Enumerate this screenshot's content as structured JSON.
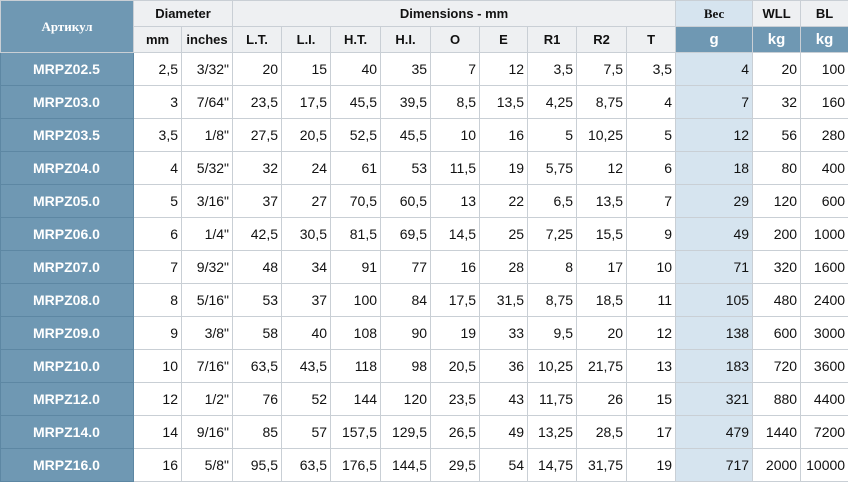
{
  "header": {
    "article": "Артикул",
    "diameter": "Diameter",
    "dimensions": "Dimensions - mm",
    "weight": "Вес",
    "wll": "WLL",
    "bl": "BL"
  },
  "subheader": [
    "mm",
    "inches",
    "L.T.",
    "L.I.",
    "H.T.",
    "H.I.",
    "O",
    "E",
    "R1",
    "R2",
    "T",
    "g",
    "kg",
    "kg"
  ],
  "table": {
    "rows": [
      [
        "MRPZ02.5",
        "2,5",
        "3/32\"",
        "20",
        "15",
        "40",
        "35",
        "7",
        "12",
        "3,5",
        "7,5",
        "3,5",
        "4",
        "20",
        "100"
      ],
      [
        "MRPZ03.0",
        "3",
        "7/64\"",
        "23,5",
        "17,5",
        "45,5",
        "39,5",
        "8,5",
        "13,5",
        "4,25",
        "8,75",
        "4",
        "7",
        "32",
        "160"
      ],
      [
        "MRPZ03.5",
        "3,5",
        "1/8\"",
        "27,5",
        "20,5",
        "52,5",
        "45,5",
        "10",
        "16",
        "5",
        "10,25",
        "5",
        "12",
        "56",
        "280"
      ],
      [
        "MRPZ04.0",
        "4",
        "5/32\"",
        "32",
        "24",
        "61",
        "53",
        "11,5",
        "19",
        "5,75",
        "12",
        "6",
        "18",
        "80",
        "400"
      ],
      [
        "MRPZ05.0",
        "5",
        "3/16\"",
        "37",
        "27",
        "70,5",
        "60,5",
        "13",
        "22",
        "6,5",
        "13,5",
        "7",
        "29",
        "120",
        "600"
      ],
      [
        "MRPZ06.0",
        "6",
        "1/4\"",
        "42,5",
        "30,5",
        "81,5",
        "69,5",
        "14,5",
        "25",
        "7,25",
        "15,5",
        "9",
        "49",
        "200",
        "1000"
      ],
      [
        "MRPZ07.0",
        "7",
        "9/32\"",
        "48",
        "34",
        "91",
        "77",
        "16",
        "28",
        "8",
        "17",
        "10",
        "71",
        "320",
        "1600"
      ],
      [
        "MRPZ08.0",
        "8",
        "5/16\"",
        "53",
        "37",
        "100",
        "84",
        "17,5",
        "31,5",
        "8,75",
        "18,5",
        "11",
        "105",
        "480",
        "2400"
      ],
      [
        "MRPZ09.0",
        "9",
        "3/8\"",
        "58",
        "40",
        "108",
        "90",
        "19",
        "33",
        "9,5",
        "20",
        "12",
        "138",
        "600",
        "3000"
      ],
      [
        "MRPZ10.0",
        "10",
        "7/16\"",
        "63,5",
        "43,5",
        "118",
        "98",
        "20,5",
        "36",
        "10,25",
        "21,75",
        "13",
        "183",
        "720",
        "3600"
      ],
      [
        "MRPZ12.0",
        "12",
        "1/2\"",
        "76",
        "52",
        "144",
        "120",
        "23,5",
        "43",
        "11,75",
        "26",
        "15",
        "321",
        "880",
        "4400"
      ],
      [
        "MRPZ14.0",
        "14",
        "9/16\"",
        "85",
        "57",
        "157,5",
        "129,5",
        "26,5",
        "49",
        "13,25",
        "28,5",
        "17",
        "479",
        "1440",
        "7200"
      ],
      [
        "MRPZ16.0",
        "16",
        "5/8\"",
        "95,5",
        "63,5",
        "176,5",
        "144,5",
        "29,5",
        "54",
        "14,75",
        "31,75",
        "19",
        "717",
        "2000",
        "10000"
      ]
    ]
  }
}
